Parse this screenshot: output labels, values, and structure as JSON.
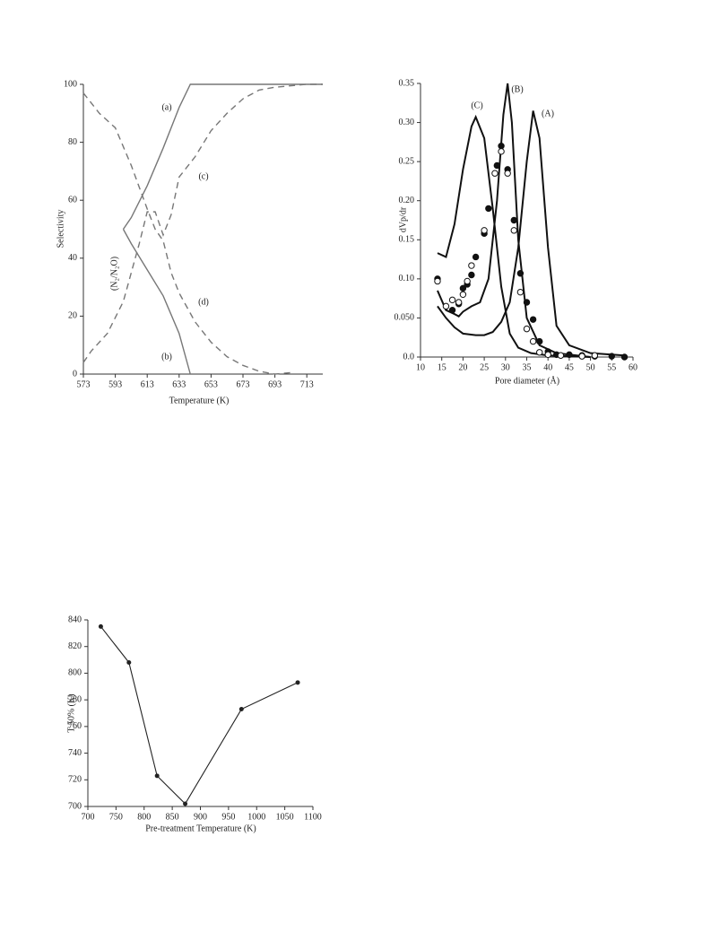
{
  "chart_data": [
    {
      "type": "line",
      "xlabel": "Temperature (K)",
      "ylabel": "Selectivity",
      "xlim": [
        573,
        723
      ],
      "xticks": [
        573,
        593,
        613,
        633,
        653,
        673,
        693,
        713
      ],
      "ylim": [
        0,
        100
      ],
      "yticks": [
        0,
        20,
        40,
        60,
        80,
        100
      ],
      "annotations": [
        "(N₂/N₂O)"
      ],
      "series": [
        {
          "name": "(a)",
          "color": "#777777",
          "line_style": "solid",
          "x": [
            598,
            603,
            613,
            623,
            633,
            640,
            723
          ],
          "values": [
            50,
            54,
            65,
            78,
            92,
            100,
            100
          ]
        },
        {
          "name": "(b)",
          "color": "#777777",
          "line_style": "solid",
          "x": [
            598,
            603,
            613,
            623,
            633,
            640
          ],
          "values": [
            50,
            45,
            36,
            27,
            14,
            0
          ]
        },
        {
          "name": "(c)",
          "color": "#777777",
          "line_style": "dashed",
          "x": [
            573,
            578,
            588,
            598,
            608,
            613,
            618,
            623,
            628,
            633,
            643,
            653,
            663,
            673,
            683,
            693,
            713,
            723
          ],
          "values": [
            4,
            8,
            14,
            25,
            45,
            56,
            56,
            48,
            55,
            68,
            75,
            84,
            90,
            95,
            98,
            99,
            100,
            100
          ]
        },
        {
          "name": "(d)",
          "color": "#777777",
          "line_style": "dashed",
          "x": [
            573,
            583,
            593,
            603,
            613,
            618,
            623,
            628,
            633,
            643,
            653,
            663,
            673,
            683,
            693,
            703
          ],
          "values": [
            97,
            90,
            85,
            72,
            57,
            50,
            46,
            35,
            28,
            18,
            11,
            6,
            3,
            1,
            0,
            0.5
          ]
        }
      ]
    },
    {
      "type": "line",
      "xlabel": "Pore diameter (Å)",
      "ylabel": "dVp/dr",
      "xlim": [
        10,
        60
      ],
      "xticks": [
        10,
        15,
        20,
        25,
        30,
        35,
        40,
        45,
        50,
        55,
        60
      ],
      "ylim": [
        0,
        0.35
      ],
      "yticks": [
        {
          "value": 0,
          "label": "0.0"
        },
        {
          "value": 0.05,
          "label": "0.050"
        },
        {
          "value": 0.1,
          "label": "0.10"
        },
        0.15,
        {
          "value": 0.2,
          "label": "0.20"
        },
        0.25,
        {
          "value": 0.3,
          "label": "0.30"
        },
        0.35
      ],
      "series": [
        {
          "name": "(C)",
          "color": "#111111",
          "line_style": "solid",
          "x": [
            14,
            16,
            18,
            20,
            22,
            23,
            25,
            27,
            29,
            31,
            33,
            36,
            40,
            50
          ],
          "values": [
            0.133,
            0.128,
            0.17,
            0.24,
            0.295,
            0.307,
            0.28,
            0.19,
            0.09,
            0.03,
            0.012,
            0.005,
            0.002,
            0
          ]
        },
        {
          "name": "(B)",
          "color": "#111111",
          "line_style": "solid",
          "x": [
            14,
            16,
            18,
            19,
            20,
            22,
            24,
            26,
            28,
            29.5,
            30.5,
            31.5,
            33,
            35,
            38,
            42,
            50
          ],
          "values": [
            0.085,
            0.06,
            0.055,
            0.052,
            0.058,
            0.065,
            0.07,
            0.1,
            0.2,
            0.31,
            0.35,
            0.3,
            0.15,
            0.05,
            0.015,
            0.005,
            0
          ]
        },
        {
          "name": "(A)",
          "color": "#111111",
          "line_style": "solid",
          "x": [
            14,
            16,
            18,
            20,
            23,
            25,
            27,
            29,
            31,
            33,
            35,
            36.5,
            38,
            40,
            42,
            45,
            50,
            58
          ],
          "values": [
            0.065,
            0.05,
            0.038,
            0.03,
            0.028,
            0.028,
            0.032,
            0.045,
            0.07,
            0.14,
            0.25,
            0.315,
            0.28,
            0.14,
            0.04,
            0.015,
            0.005,
            0.002
          ]
        },
        {
          "color": "#111111",
          "marker": "filled",
          "x": [
            14,
            17.5,
            19,
            20,
            21,
            22,
            23,
            25,
            26,
            28,
            29,
            30.5,
            32,
            33.5,
            35,
            36.5,
            38,
            40,
            42,
            45,
            48,
            51,
            55,
            58
          ],
          "values": [
            0.1,
            0.06,
            0.068,
            0.088,
            0.093,
            0.105,
            0.128,
            0.158,
            0.19,
            0.245,
            0.27,
            0.24,
            0.175,
            0.107,
            0.07,
            0.048,
            0.02,
            0.007,
            0.003,
            0.003,
            0.002,
            0.001,
            0.001,
            0
          ]
        },
        {
          "color": "#111111",
          "marker": "open",
          "x": [
            14,
            16,
            17.5,
            19,
            20,
            21,
            22,
            25,
            27.5,
            29,
            30.5,
            32,
            33.5,
            35,
            36.5,
            38,
            40,
            43,
            48,
            51
          ],
          "values": [
            0.097,
            0.065,
            0.073,
            0.07,
            0.08,
            0.097,
            0.117,
            0.162,
            0.235,
            0.263,
            0.235,
            0.162,
            0.083,
            0.036,
            0.02,
            0.006,
            0.003,
            0.002,
            0.001,
            0.002
          ]
        }
      ]
    },
    {
      "type": "line",
      "xlabel": "Pre-treatment Temperature (K)",
      "ylabel": "T 50% (K)",
      "xlim": [
        700,
        1100
      ],
      "xticks": [
        700,
        750,
        800,
        850,
        900,
        950,
        1000,
        1050,
        1100
      ],
      "ylim": [
        700,
        840
      ],
      "yticks": [
        700,
        720,
        740,
        760,
        780,
        800,
        820,
        840
      ],
      "series": [
        {
          "color": "#222222",
          "line_style": "solid",
          "marker": "dot",
          "x": [
            723,
            773,
            823,
            873,
            973,
            1073
          ],
          "values": [
            835,
            808,
            723,
            702,
            773,
            793
          ]
        }
      ]
    }
  ]
}
